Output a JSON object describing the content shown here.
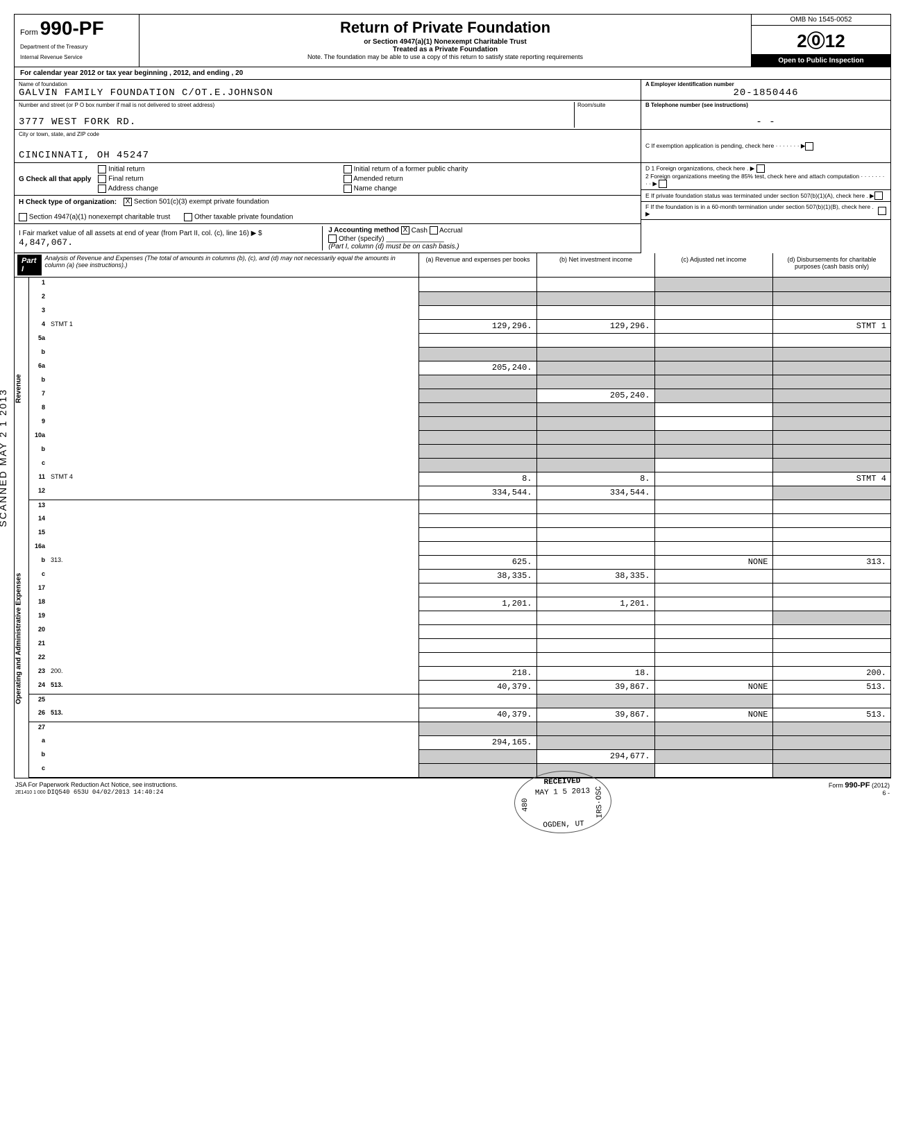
{
  "form": {
    "number": "990-PF",
    "prefix": "Form",
    "title": "Return of Private Foundation",
    "subtitle1": "or Section 4947(a)(1) Nonexempt Charitable Trust",
    "subtitle2": "Treated as a Private Foundation",
    "note": "Note. The foundation may be able to use a copy of this return to satisfy state reporting requirements",
    "dept1": "Department of the Treasury",
    "dept2": "Internal Revenue Service",
    "omb": "OMB No 1545-0052",
    "year": "2012",
    "year_styled": "2⓪12",
    "open": "Open to Public Inspection"
  },
  "calendar_line": "For calendar year 2012 or tax year beginning                                                     , 2012, and ending                                   , 20",
  "foundation": {
    "name_label": "Name of foundation",
    "name": "GALVIN FAMILY FOUNDATION C/OT.E.JOHNSON",
    "addr_label": "Number and street (or P O  box number if mail is not delivered to street address)",
    "room_label": "Room/suite",
    "street": "3777 WEST FORK RD.",
    "city_label": "City or town, state, and ZIP code",
    "city": "CINCINNATI, OH 45247",
    "ein_label": "A  Employer identification number",
    "ein": "20-1850446",
    "phone_label": "B  Telephone number (see instructions)",
    "phone": "-        -"
  },
  "section_c": "C  If exemption application is pending, check here  · · · · · · ·  ▶",
  "section_d": {
    "d1": "D  1 Foreign organizations, check here   .  ▶",
    "d2": "2 Foreign organizations meeting the 85% test, check here and attach computation  · · · · · · · · ·  ▶"
  },
  "section_e": "E  If private foundation status was terminated under section 507(b)(1)(A), check here  .  ▶",
  "section_f": "F  If the foundation is in a 60-month termination under section 507(b)(1)(B), check here  .  ▶",
  "g": {
    "label": "G  Check all that apply",
    "opts": [
      "Initial return",
      "Final return",
      "Address change",
      "Initial return of a former public charity",
      "Amended return",
      "Name change"
    ]
  },
  "h": {
    "label": "H  Check type of organization:",
    "opt1": "Section 501(c)(3) exempt private foundation",
    "opt1_checked": "X",
    "opt2": "Section 4947(a)(1) nonexempt charitable trust",
    "opt3": "Other taxable private foundation"
  },
  "i": {
    "label": "I  Fair market value of all assets at end of year (from Part II, col. (c), line 16) ▶ $",
    "value": "4,847,067."
  },
  "j": {
    "label": "J Accounting method",
    "cash": "Cash",
    "cash_checked": "X",
    "accrual": "Accrual",
    "other": "Other (specify)",
    "note": "(Part I, column (d) must be on cash basis.)"
  },
  "part1": {
    "title": "Part I",
    "desc": "Analysis of Revenue and Expenses (The total of amounts in columns (b), (c), and (d) may not necessarily equal the amounts in column (a) (see instructions).)",
    "col_a": "(a) Revenue and expenses per books",
    "col_b": "(b) Net investment income",
    "col_c": "(c) Adjusted net income",
    "col_d": "(d) Disbursements for charitable purposes (cash basis only)"
  },
  "revenue_label": "Revenue",
  "opadmin_label": "Operating and Administrative Expenses",
  "lines": [
    {
      "n": "1",
      "d": "",
      "a": "",
      "b": "",
      "c": "",
      "c_shade": true,
      "d_shade": true
    },
    {
      "n": "2",
      "d": "",
      "a": "",
      "b": "",
      "c": "",
      "a_shade": true,
      "b_shade": true,
      "c_shade": true,
      "d_shade": true
    },
    {
      "n": "3",
      "d": "",
      "a": "",
      "b": "",
      "c": ""
    },
    {
      "n": "4",
      "d": "STMT 1",
      "a": "129,296.",
      "b": "129,296.",
      "c": ""
    },
    {
      "n": "5a",
      "d": "",
      "a": "",
      "b": "",
      "c": ""
    },
    {
      "n": "b",
      "d": "",
      "a": "",
      "b": "",
      "c": "",
      "a_shade": true,
      "b_shade": true,
      "c_shade": true,
      "d_shade": true
    },
    {
      "n": "6a",
      "d": "",
      "a": "205,240.",
      "b": "",
      "c": "",
      "b_shade": true,
      "c_shade": true,
      "d_shade": true
    },
    {
      "n": "b",
      "d": "",
      "a": "",
      "b": "",
      "c": "",
      "a_shade": true,
      "b_shade": true,
      "c_shade": true,
      "d_shade": true
    },
    {
      "n": "7",
      "d": "",
      "a": "",
      "b": "205,240.",
      "c": "",
      "a_shade": true,
      "c_shade": true,
      "d_shade": true
    },
    {
      "n": "8",
      "d": "",
      "a": "",
      "b": "",
      "c": "",
      "a_shade": true,
      "b_shade": true,
      "d_shade": true
    },
    {
      "n": "9",
      "d": "",
      "a": "",
      "b": "",
      "c": "",
      "a_shade": true,
      "b_shade": true,
      "d_shade": true
    },
    {
      "n": "10a",
      "d": "",
      "a": "",
      "b": "",
      "c": "",
      "a_shade": true,
      "b_shade": true,
      "c_shade": true,
      "d_shade": true
    },
    {
      "n": "b",
      "d": "",
      "a": "",
      "b": "",
      "c": "",
      "a_shade": true,
      "b_shade": true,
      "c_shade": true,
      "d_shade": true
    },
    {
      "n": "c",
      "d": "",
      "a": "",
      "b": "",
      "c": "",
      "a_shade": true,
      "b_shade": true,
      "d_shade": true
    },
    {
      "n": "11",
      "d": "STMT 4",
      "a": "8.",
      "b": "8.",
      "c": ""
    },
    {
      "n": "12",
      "d": "",
      "a": "334,544.",
      "b": "334,544.",
      "c": "",
      "bold": true,
      "d_shade": true
    },
    {
      "n": "13",
      "d": "",
      "a": "",
      "b": "",
      "c": ""
    },
    {
      "n": "14",
      "d": "",
      "a": "",
      "b": "",
      "c": ""
    },
    {
      "n": "15",
      "d": "",
      "a": "",
      "b": "",
      "c": ""
    },
    {
      "n": "16a",
      "d": "",
      "a": "",
      "b": "",
      "c": ""
    },
    {
      "n": "b",
      "d": "313.",
      "a": "625.",
      "b": "",
      "c": "NONE"
    },
    {
      "n": "c",
      "d": "",
      "a": "38,335.",
      "b": "38,335.",
      "c": ""
    },
    {
      "n": "17",
      "d": "",
      "a": "",
      "b": "",
      "c": ""
    },
    {
      "n": "18",
      "d": "",
      "a": "1,201.",
      "b": "1,201.",
      "c": ""
    },
    {
      "n": "19",
      "d": "",
      "a": "",
      "b": "",
      "c": "",
      "d_shade": true
    },
    {
      "n": "20",
      "d": "",
      "a": "",
      "b": "",
      "c": ""
    },
    {
      "n": "21",
      "d": "",
      "a": "",
      "b": "",
      "c": ""
    },
    {
      "n": "22",
      "d": "",
      "a": "",
      "b": "",
      "c": ""
    },
    {
      "n": "23",
      "d": "200.",
      "a": "218.",
      "b": "18.",
      "c": ""
    },
    {
      "n": "24",
      "d": "513.",
      "a": "40,379.",
      "b": "39,867.",
      "c": "NONE",
      "bold": true
    },
    {
      "n": "25",
      "d": "",
      "a": "",
      "b": "",
      "c": "",
      "b_shade": true,
      "c_shade": true
    },
    {
      "n": "26",
      "d": "513.",
      "a": "40,379.",
      "b": "39,867.",
      "c": "NONE",
      "bold": true
    },
    {
      "n": "27",
      "d": "",
      "a": "",
      "b": "",
      "c": "",
      "a_shade": true,
      "b_shade": true,
      "c_shade": true,
      "d_shade": true
    },
    {
      "n": "a",
      "d": "",
      "a": "294,165.",
      "b": "",
      "c": "",
      "b_shade": true,
      "c_shade": true,
      "d_shade": true
    },
    {
      "n": "b",
      "d": "",
      "a": "",
      "b": "294,677.",
      "c": "",
      "a_shade": true,
      "c_shade": true,
      "d_shade": true
    },
    {
      "n": "c",
      "d": "",
      "a": "",
      "b": "",
      "c": "",
      "a_shade": true,
      "b_shade": true,
      "d_shade": true
    }
  ],
  "left_margin": "SCANNED  MAY 2 1 2013",
  "stamp": {
    "l1": "RECEIVED",
    "l2": "480",
    "l3": "MAY 1 5 2013",
    "l4": "IRS·OSC",
    "l5": "OGDEN, UT"
  },
  "footer": {
    "jsa": "JSA  For Paperwork Reduction Act Notice, see instructions.",
    "code": "2E1410 1 000",
    "batch": "DIQ540 653U 04/02/2013 14:40:24",
    "form": "Form 990-PF (2012)",
    "page": "6   -"
  }
}
